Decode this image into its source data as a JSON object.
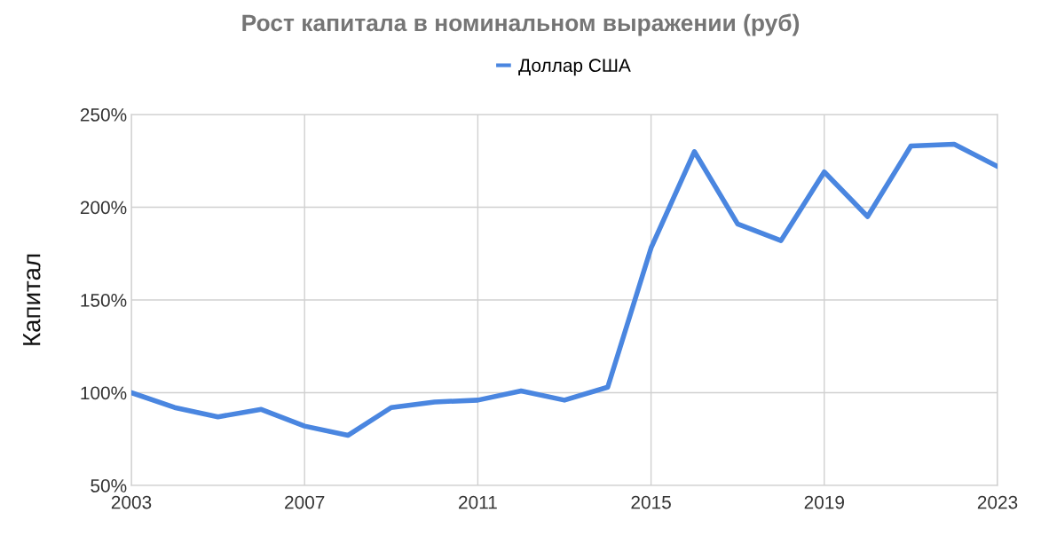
{
  "chart_data": {
    "type": "line",
    "title": "Рост капитала в номинальном выражении (руб)",
    "ylabel": "Капитал",
    "x": [
      2003,
      2004,
      2005,
      2006,
      2007,
      2008,
      2009,
      2010,
      2011,
      2012,
      2013,
      2014,
      2015,
      2016,
      2017,
      2018,
      2019,
      2020,
      2021,
      2022,
      2023
    ],
    "series": [
      {
        "name": "Доллар США",
        "color": "#4a86e0",
        "values": [
          100,
          92,
          87,
          91,
          82,
          77,
          92,
          95,
          96,
          101,
          96,
          103,
          178,
          230,
          191,
          182,
          219,
          195,
          233,
          234,
          222
        ]
      }
    ],
    "xlim": [
      2003,
      2023
    ],
    "xticks": [
      2003,
      2007,
      2011,
      2015,
      2019,
      2023
    ],
    "ylim": [
      50,
      250
    ],
    "yticks": [
      {
        "value": 50,
        "label": "50%"
      },
      {
        "value": 100,
        "label": "100%"
      },
      {
        "value": 150,
        "label": "150%"
      },
      {
        "value": 200,
        "label": "200%"
      },
      {
        "value": 250,
        "label": "250%"
      }
    ],
    "grid": true,
    "legend": "top",
    "marker": "none",
    "line_style": "solid"
  }
}
